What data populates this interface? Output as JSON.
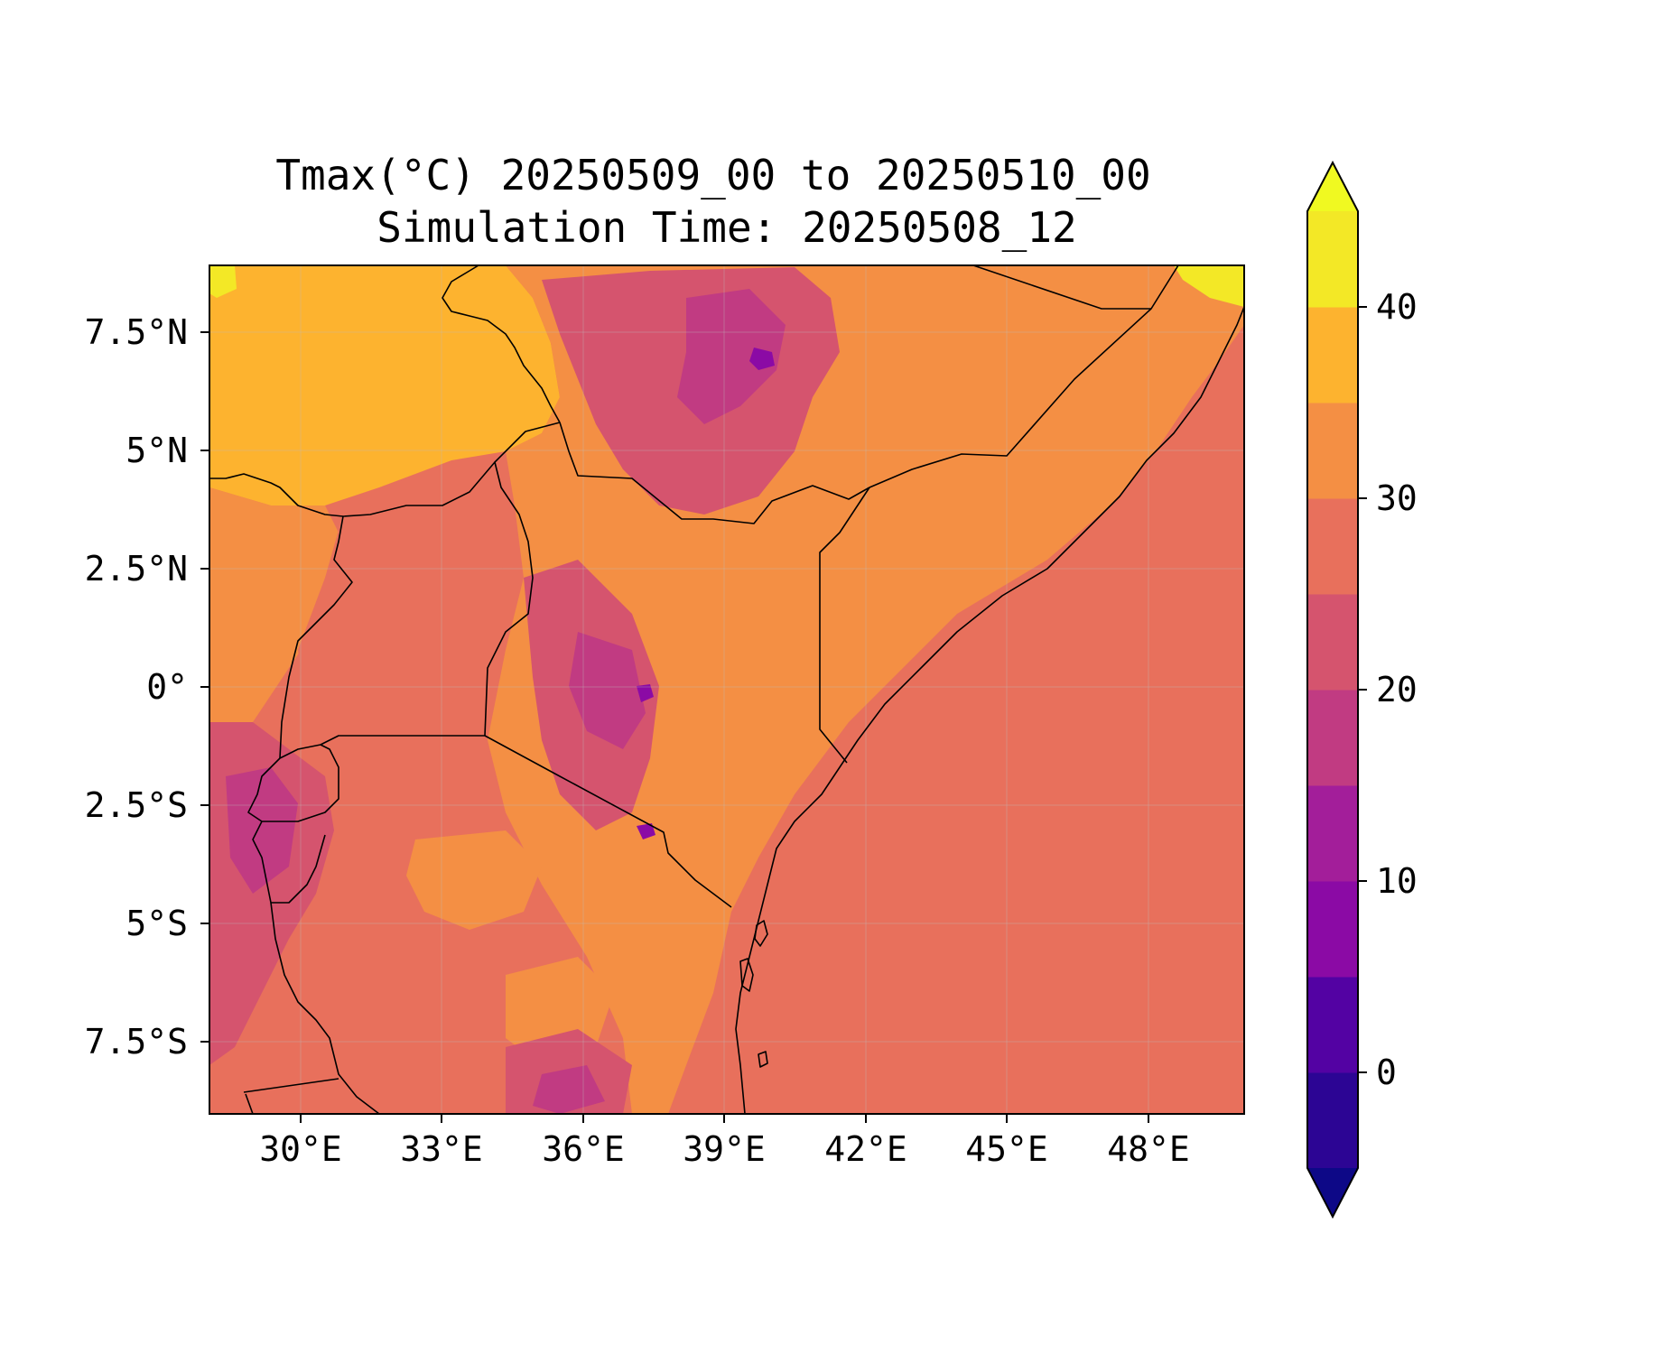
{
  "title": {
    "line1": "Tmax(°C) 20250509_00 to 20250510_00",
    "line2": "Simulation Time: 20250508_12"
  },
  "axes": {
    "lon_ticks": [
      "30°E",
      "33°E",
      "36°E",
      "39°E",
      "42°E",
      "45°E",
      "48°E"
    ],
    "lat_ticks": [
      "7.5°N",
      "5°N",
      "2.5°N",
      "0°",
      "2.5°S",
      "5°S",
      "7.5°S"
    ],
    "lon_range": [
      28,
      50
    ],
    "lat_range": [
      -9,
      9
    ]
  },
  "colorbar": {
    "tick_labels": [
      "40",
      "30",
      "20",
      "10",
      "0"
    ],
    "levels": [
      -5,
      0,
      5,
      10,
      15,
      20,
      25,
      30,
      35,
      40,
      45
    ],
    "extend": "both",
    "colors": [
      "#0d0887",
      "#2c0594",
      "#5302a3",
      "#8b0aa5",
      "#a31e9a",
      "#c13b82",
      "#d5546e",
      "#e8705c",
      "#f48f44",
      "#fdb32f",
      "#f3e826",
      "#f0f921"
    ]
  },
  "fields": {
    "ocean": "#e8705c",
    "hot_north": "#fdb32f",
    "lowland": "#f48f44",
    "highland_mid": "#d5546e",
    "highland_cool": "#c13b82",
    "peak": "#8b0aa5",
    "hottest": "#f3e826"
  }
}
